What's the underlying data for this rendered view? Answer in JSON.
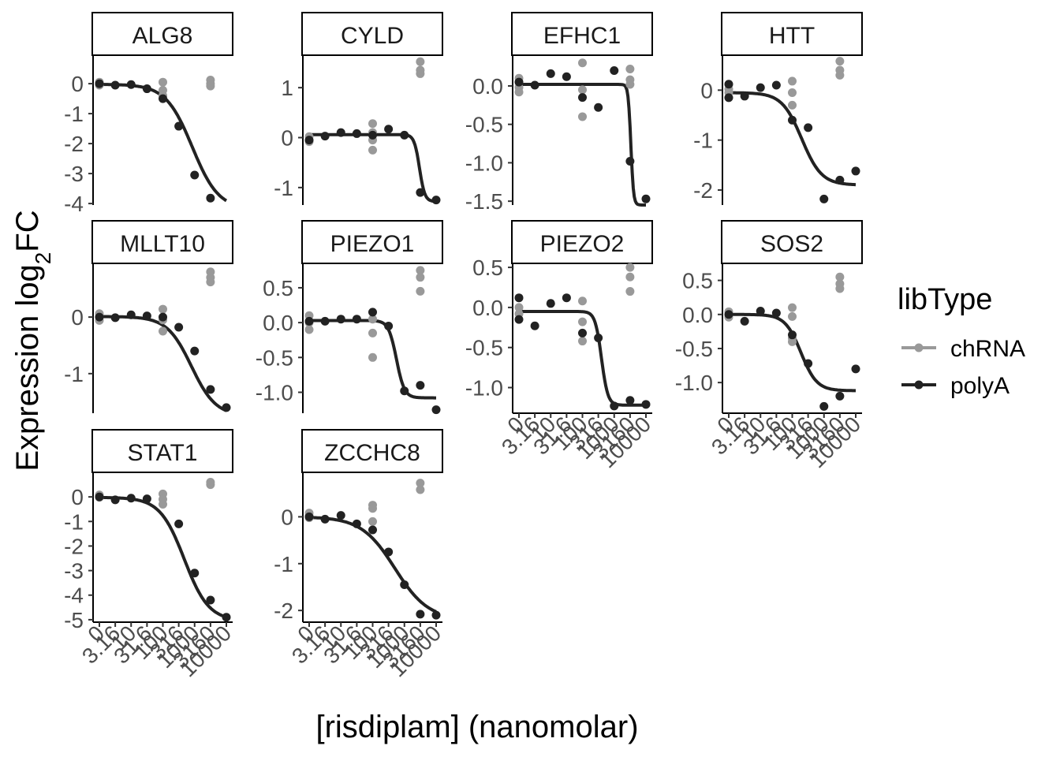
{
  "chart_data": {
    "type": "scatter",
    "xlabel": "[risdiplam] (nanomolar)",
    "ylabel_main": "Expression log",
    "ylabel_sub": "2",
    "ylabel_suffix": "FC",
    "x_tick_labels": [
      "0",
      "3.16",
      "10",
      "31.6",
      "100",
      "316",
      "1000",
      "3160",
      "10000"
    ],
    "legend": {
      "title": "libType",
      "position": "right",
      "entries": [
        {
          "name": "chRNA",
          "color": "#999999"
        },
        {
          "name": "polyA",
          "color": "#222222"
        }
      ]
    },
    "colors": {
      "chRNA": "#999999",
      "polyA": "#222222",
      "fit": "#222222"
    },
    "panels": [
      {
        "gene": "ALG8",
        "yticks": [
          0,
          -1,
          -2,
          -3,
          -4
        ],
        "ylim": [
          -4.05,
          0.95
        ],
        "polyA": [
          0.0,
          -0.05,
          -0.03,
          -0.17,
          -0.5,
          -1.42,
          -3.05,
          -3.82
        ],
        "chRNA": [
          [
            0,
            0.05
          ],
          [
            0,
            -0.05
          ],
          [
            0,
            0.0
          ],
          [
            4,
            0.05
          ],
          [
            4,
            -0.22
          ],
          [
            4,
            -0.4
          ],
          [
            7,
            0.12
          ],
          [
            7,
            0.0
          ],
          [
            7,
            -0.08
          ]
        ],
        "fit": {
          "top": -0.02,
          "bottom": -4.2,
          "ec50": 5.85,
          "hill": 1.2
        }
      },
      {
        "gene": "CYLD",
        "yticks": [
          1,
          0,
          -1
        ],
        "ylim": [
          -1.35,
          1.65
        ],
        "polyA": [
          -0.05,
          0.03,
          0.1,
          0.08,
          0.05,
          0.17,
          0.05,
          -1.1,
          -1.25
        ],
        "chRNA": [
          [
            0,
            0.02
          ],
          [
            0,
            -0.08
          ],
          [
            4,
            0.28
          ],
          [
            4,
            0.1
          ],
          [
            4,
            -0.05
          ],
          [
            4,
            -0.25
          ],
          [
            7,
            1.52
          ],
          [
            7,
            1.35
          ],
          [
            7,
            1.28
          ]
        ],
        "fit": {
          "top": 0.06,
          "bottom": -1.28,
          "ec50": 6.95,
          "hill": 6.0
        }
      },
      {
        "gene": "EFHC1",
        "yticks": [
          0.0,
          -0.5,
          -1.0,
          -1.5
        ],
        "ylim": [
          -1.55,
          0.4
        ],
        "polyA": [
          0.05,
          0.01,
          0.16,
          0.12,
          -0.15,
          -0.28,
          0.2,
          -0.98,
          -1.47
        ],
        "chRNA": [
          [
            0,
            0.1
          ],
          [
            0,
            0.05
          ],
          [
            0,
            -0.02
          ],
          [
            0,
            -0.08
          ],
          [
            4,
            0.3
          ],
          [
            4,
            -0.05
          ],
          [
            4,
            -0.4
          ],
          [
            7,
            0.22
          ],
          [
            7,
            0.08
          ],
          [
            7,
            0.02
          ]
        ],
        "fit": {
          "top": 0.02,
          "bottom": -1.55,
          "ec50": 7.05,
          "hill": 12.0
        }
      },
      {
        "gene": "HTT",
        "yticks": [
          0,
          -1,
          -2
        ],
        "ylim": [
          -2.3,
          0.7
        ],
        "polyA": [
          0.12,
          -0.15,
          -0.12,
          0.05,
          0.1,
          -0.6,
          -0.75,
          -2.18,
          -1.8,
          -1.62
        ],
        "polyA_x": [
          0,
          0,
          1,
          2,
          3,
          4,
          5,
          6,
          7,
          8
        ],
        "chRNA": [
          [
            0,
            0.02
          ],
          [
            0,
            -0.05
          ],
          [
            4,
            0.18
          ],
          [
            4,
            -0.05
          ],
          [
            4,
            -0.3
          ],
          [
            7,
            0.58
          ],
          [
            7,
            0.4
          ],
          [
            7,
            0.3
          ]
        ],
        "fit": {
          "top": -0.05,
          "bottom": -1.9,
          "ec50": 4.6,
          "hill": 1.6
        }
      },
      {
        "gene": "MLLT10",
        "yticks": [
          0,
          -1
        ],
        "ylim": [
          -1.7,
          0.95
        ],
        "polyA": [
          0.0,
          -0.01,
          0.04,
          0.02,
          0.0,
          -0.18,
          -0.6,
          -1.28,
          -1.6
        ],
        "chRNA": [
          [
            0,
            0.06
          ],
          [
            0,
            0.0
          ],
          [
            0,
            -0.06
          ],
          [
            4,
            0.14
          ],
          [
            4,
            -0.05
          ],
          [
            4,
            -0.25
          ],
          [
            7,
            0.8
          ],
          [
            7,
            0.7
          ],
          [
            7,
            0.62
          ]
        ],
        "fit": {
          "top": 0.01,
          "bottom": -1.75,
          "ec50": 5.8,
          "hill": 1.3
        }
      },
      {
        "gene": "PIEZO1",
        "yticks": [
          0.5,
          0.0,
          -0.5,
          -1.0
        ],
        "ylim": [
          -1.3,
          0.85
        ],
        "polyA": [
          0.02,
          0.02,
          0.05,
          0.05,
          0.15,
          -0.05,
          -0.98,
          -0.9,
          -1.25
        ],
        "chRNA": [
          [
            0,
            0.1
          ],
          [
            0,
            0.0
          ],
          [
            0,
            -0.1
          ],
          [
            4,
            0.05
          ],
          [
            4,
            -0.15
          ],
          [
            4,
            -0.5
          ],
          [
            7,
            0.75
          ],
          [
            7,
            0.65
          ],
          [
            7,
            0.45
          ]
        ],
        "fit": {
          "top": 0.03,
          "bottom": -1.08,
          "ec50": 5.5,
          "hill": 4.0
        }
      },
      {
        "gene": "PIEZO2",
        "yticks": [
          0.5,
          0.0,
          -0.5,
          -1.0
        ],
        "ylim": [
          -1.32,
          0.55
        ],
        "polyA": [
          0.12,
          -0.15,
          -0.23,
          0.05,
          0.12,
          -0.32,
          -0.38,
          -1.23,
          -1.16,
          -1.21
        ],
        "polyA_x": [
          0,
          0,
          1,
          2,
          3,
          4,
          5,
          6,
          7,
          8
        ],
        "chRNA": [
          [
            0,
            0.0
          ],
          [
            0,
            -0.08
          ],
          [
            4,
            0.08
          ],
          [
            4,
            -0.18
          ],
          [
            4,
            -0.42
          ],
          [
            7,
            0.5
          ],
          [
            7,
            0.38
          ],
          [
            7,
            0.2
          ]
        ],
        "fit": {
          "top": -0.05,
          "bottom": -1.22,
          "ec50": 5.2,
          "hill": 5.0
        }
      },
      {
        "gene": "SOS2",
        "yticks": [
          0.5,
          0.0,
          -0.5,
          -1.0
        ],
        "ylim": [
          -1.45,
          0.75
        ],
        "polyA": [
          0.0,
          -0.1,
          0.05,
          0.02,
          -0.3,
          -0.72,
          -1.35,
          -1.2,
          -0.8
        ],
        "chRNA": [
          [
            0,
            0.04
          ],
          [
            0,
            -0.04
          ],
          [
            4,
            0.1
          ],
          [
            4,
            -0.03
          ],
          [
            4,
            -0.35
          ],
          [
            4,
            -0.4
          ],
          [
            7,
            0.55
          ],
          [
            7,
            0.45
          ],
          [
            7,
            0.38
          ]
        ],
        "fit": {
          "top": 0.0,
          "bottom": -1.12,
          "ec50": 4.55,
          "hill": 2.0
        }
      },
      {
        "gene": "STAT1",
        "yticks": [
          0,
          -1,
          -2,
          -3,
          -4,
          -5
        ],
        "ylim": [
          -5.1,
          1.0
        ],
        "polyA": [
          0.0,
          -0.12,
          -0.05,
          -0.08,
          -1.1,
          -3.1,
          -4.2,
          -4.9
        ],
        "polyA_x": [
          0,
          1,
          2,
          3,
          5,
          6,
          7,
          8
        ],
        "chRNA": [
          [
            0,
            0.08
          ],
          [
            0,
            -0.02
          ],
          [
            4,
            0.12
          ],
          [
            4,
            -0.1
          ],
          [
            4,
            -0.3
          ],
          [
            7,
            0.6
          ],
          [
            7,
            0.5
          ]
        ],
        "fit": {
          "top": -0.02,
          "bottom": -5.05,
          "ec50": 5.35,
          "hill": 1.3
        }
      },
      {
        "gene": "ZCCHC8",
        "yticks": [
          0,
          -1,
          -2
        ],
        "ylim": [
          -2.25,
          0.95
        ],
        "polyA": [
          0.0,
          -0.05,
          0.03,
          -0.15,
          -0.28,
          -0.75,
          -1.45,
          -2.08,
          -2.1
        ],
        "chRNA": [
          [
            0,
            0.08
          ],
          [
            0,
            0.02
          ],
          [
            0,
            -0.02
          ],
          [
            4,
            0.25
          ],
          [
            4,
            0.18
          ],
          [
            4,
            -0.1
          ],
          [
            7,
            0.72
          ],
          [
            7,
            0.58
          ]
        ],
        "fit": {
          "top": 0.0,
          "bottom": -2.2,
          "ec50": 5.4,
          "hill": 0.95
        }
      }
    ]
  }
}
